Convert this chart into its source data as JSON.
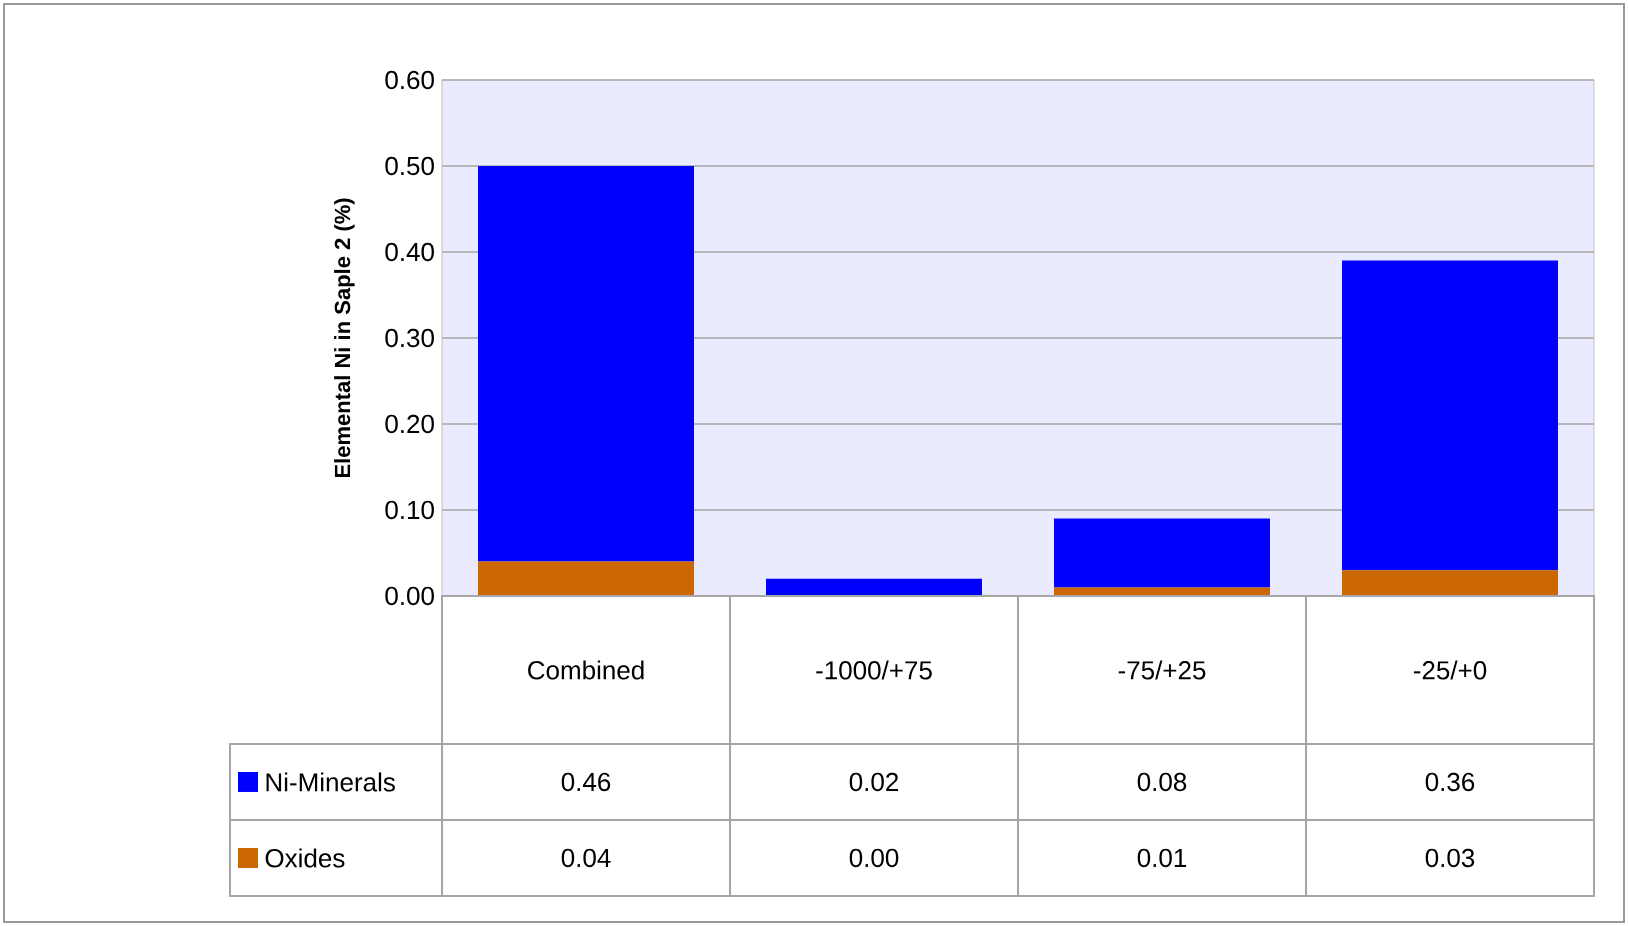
{
  "chart_data": {
    "type": "bar",
    "stacked": true,
    "ylabel": "Elemental Ni in Saple 2 (%)",
    "categories": [
      "Combined",
      "-1000/+75",
      "-75/+25",
      "-25/+0"
    ],
    "series": [
      {
        "name": "Oxides",
        "color": "#cc6600",
        "values": [
          0.04,
          0.0,
          0.01,
          0.03
        ],
        "value_labels": [
          "0.04",
          "0.00",
          "0.01",
          "0.03"
        ]
      },
      {
        "name": "Ni-Minerals",
        "color": "#0000ff",
        "values": [
          0.46,
          0.02,
          0.08,
          0.36
        ],
        "value_labels": [
          "0.46",
          "0.02",
          "0.08",
          "0.36"
        ]
      }
    ],
    "ylim": [
      0,
      0.6
    ],
    "yticks": [
      {
        "value": 0,
        "label": "0.00"
      },
      {
        "value": 0.1,
        "label": "0.10"
      },
      {
        "value": 0.2,
        "label": "0.20"
      },
      {
        "value": 0.3,
        "label": "0.30"
      },
      {
        "value": 0.4,
        "label": "0.40"
      },
      {
        "value": 0.5,
        "label": "0.50"
      },
      {
        "value": 0.6,
        "label": "0.60"
      }
    ],
    "grid": "y",
    "legend": "bottom"
  }
}
